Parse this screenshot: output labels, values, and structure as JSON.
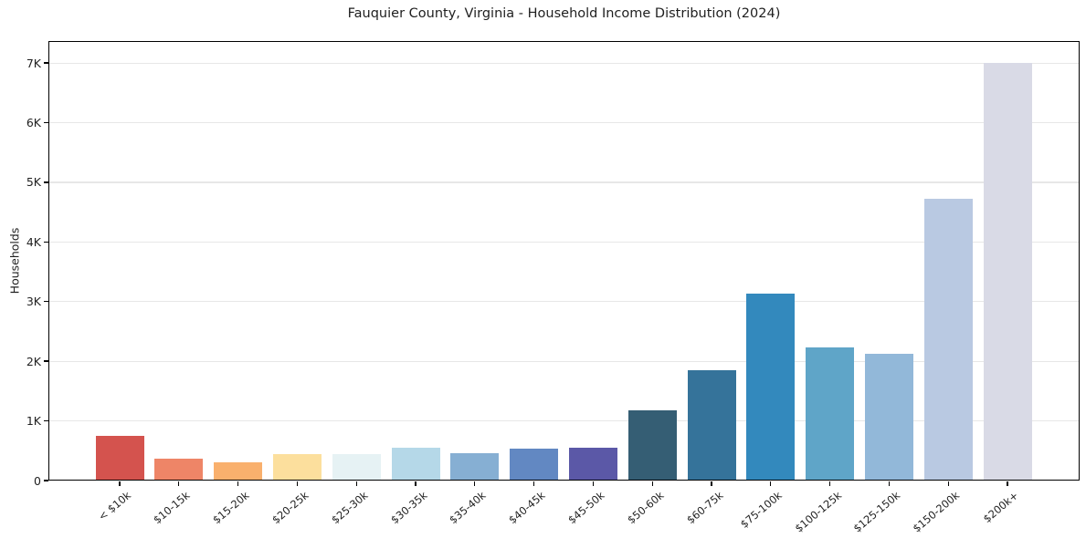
{
  "figure": {
    "title": "Fauquier County, Virginia - Household Income Distribution (2024)"
  },
  "chart_data": {
    "type": "bar",
    "title": "Fauquier County, Virginia - Household Income Distribution (2024)",
    "xlabel": "",
    "ylabel": "Households",
    "categories": [
      "< $10k",
      "$10-15k",
      "$15-20k",
      "$20-25k",
      "$25-30k",
      "$30-35k",
      "$35-40k",
      "$40-45k",
      "$45-50k",
      "$50-60k",
      "$60-75k",
      "$75-100k",
      "$100-125k",
      "$125-150k",
      "$150-200k",
      "$200k+"
    ],
    "values": [
      750,
      360,
      310,
      440,
      450,
      550,
      460,
      540,
      550,
      1180,
      1850,
      3130,
      2240,
      2130,
      4730,
      7000
    ],
    "bar_colors": [
      "#d4534e",
      "#ee8567",
      "#f9b06d",
      "#fcdf9d",
      "#e6f2f4",
      "#b5d8e8",
      "#86afd3",
      "#6288c2",
      "#5b58a7",
      "#355e74",
      "#35739a",
      "#3389bd",
      "#5fa5c8",
      "#92b8d9",
      "#b9c9e2",
      "#d9dae6"
    ],
    "ylim": [
      0,
      7370
    ],
    "yticks": [
      {
        "label": "0",
        "value": 0
      },
      {
        "label": "1K",
        "value": 1000
      },
      {
        "label": "2K",
        "value": 2000
      },
      {
        "label": "3K",
        "value": 3000
      },
      {
        "label": "4K",
        "value": 4000
      },
      {
        "label": "5K",
        "value": 5000
      },
      {
        "label": "6K",
        "value": 6000
      },
      {
        "label": "7K",
        "value": 7000
      }
    ],
    "grid": true,
    "legend": false,
    "background": "#ffffff",
    "text_color": "#1f1f1f",
    "grid_color": "#e7e7e7",
    "spine_color": "#000000"
  }
}
